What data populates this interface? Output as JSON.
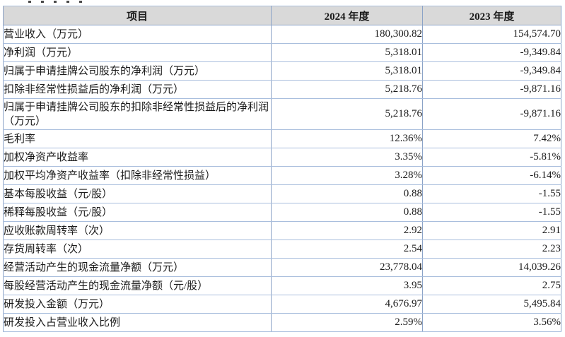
{
  "table": {
    "columns": [
      "项目",
      "2024 年度",
      "2023 年度"
    ],
    "rows": [
      {
        "label": "营业收入（万元）",
        "y2024": "180,300.82",
        "y2023": "154,574.70"
      },
      {
        "label": "净利润（万元）",
        "y2024": "5,318.01",
        "y2023": "-9,349.84"
      },
      {
        "label": "归属于申请挂牌公司股东的净利润（万元）",
        "y2024": "5,318.01",
        "y2023": "-9,349.84"
      },
      {
        "label": "扣除非经常性损益后的净利润（万元）",
        "y2024": "5,218.76",
        "y2023": "-9,871.16"
      },
      {
        "label": "归属于申请挂牌公司股东的扣除非经常性损益后的净利润（万元）",
        "y2024": "5,218.76",
        "y2023": "-9,871.16"
      },
      {
        "label": "毛利率",
        "y2024": "12.36%",
        "y2023": "7.42%"
      },
      {
        "label": "加权净资产收益率",
        "y2024": "3.35%",
        "y2023": "-5.81%"
      },
      {
        "label": "加权平均净资产收益率（扣除非经常性损益）",
        "y2024": "3.28%",
        "y2023": "-6.14%"
      },
      {
        "label": "基本每股收益（元/股）",
        "y2024": "0.88",
        "y2023": "-1.55"
      },
      {
        "label": "稀释每股收益（元/股）",
        "y2024": "0.88",
        "y2023": "-1.55"
      },
      {
        "label": "应收账款周转率（次）",
        "y2024": "2.92",
        "y2023": "2.91"
      },
      {
        "label": "存货周转率（次）",
        "y2024": "2.54",
        "y2023": "2.23"
      },
      {
        "label": "经营活动产生的现金流量净额（万元）",
        "y2024": "23,778.04",
        "y2023": "14,039.26"
      },
      {
        "label": "每股经营活动产生的现金流量净额（元/股）",
        "y2024": "3.95",
        "y2023": "2.75"
      },
      {
        "label": "研发投入金额（万元）",
        "y2024": "4,676.97",
        "y2023": "5,495.84"
      },
      {
        "label": "研发投入占营业收入比例",
        "y2024": "2.59%",
        "y2023": "3.56%"
      }
    ]
  },
  "colors": {
    "header_background": "#d9d9d9",
    "border_vertical": "#8ba3c7",
    "border_horizontal": "#a9bedd",
    "border_outer": "#85a0c4"
  }
}
